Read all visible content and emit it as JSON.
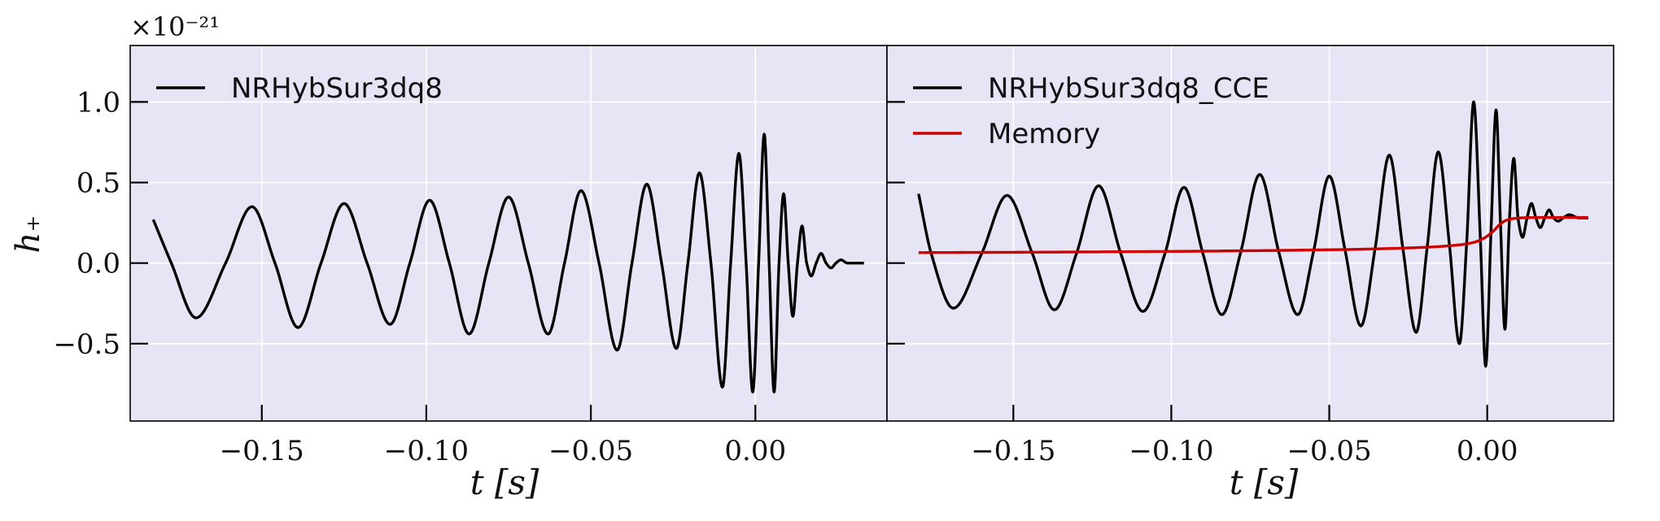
{
  "figure": {
    "offset_label": "×10⁻²¹",
    "ylabel": "h₊",
    "background": "#e5e5f6",
    "grid_color": "#ffffff"
  },
  "chart_data": [
    {
      "type": "line",
      "title": "",
      "xlabel": "t [s]",
      "ylabel": "h₊",
      "xlim": [
        -0.19,
        0.04
      ],
      "ylim": [
        -0.98,
        1.35
      ],
      "y_scale_multiplier": "1e-21",
      "grid": true,
      "legend_position": "top-left",
      "x_ticks": [
        -0.15,
        -0.1,
        -0.05,
        0.0
      ],
      "x_tick_labels": [
        "−0.15",
        "−0.10",
        "−0.05",
        "0.00"
      ],
      "y_ticks": [
        -0.5,
        0.0,
        0.5,
        1.0
      ],
      "y_tick_labels": [
        "−0.5",
        "0.0",
        "0.5",
        "1.0"
      ],
      "series": [
        {
          "name": "NRHybSur3dq8",
          "color": "#000000",
          "x": [
            -0.183,
            -0.1775,
            -0.17,
            -0.161,
            -0.153,
            -0.146,
            -0.139,
            -0.132,
            -0.125,
            -0.118,
            -0.111,
            -0.105,
            -0.099,
            -0.093,
            -0.087,
            -0.081,
            -0.075,
            -0.069,
            -0.063,
            -0.058,
            -0.053,
            -0.0475,
            -0.042,
            -0.0375,
            -0.033,
            -0.0285,
            -0.024,
            -0.0205,
            -0.017,
            -0.0135,
            -0.01,
            -0.0075,
            -0.005,
            -0.0028,
            -0.0008,
            0.001,
            0.0027,
            0.0042,
            0.0057,
            0.0072,
            0.0086,
            0.01,
            0.0114,
            0.0128,
            0.0142,
            0.0156,
            0.017,
            0.0185,
            0.02,
            0.0215,
            0.023,
            0.0245,
            0.026,
            0.028,
            0.03,
            0.033
          ],
          "y": [
            0.27,
            0.0,
            -0.34,
            0.0,
            0.35,
            0.0,
            -0.4,
            0.0,
            0.37,
            0.0,
            -0.38,
            0.0,
            0.39,
            0.0,
            -0.44,
            0.0,
            0.41,
            0.0,
            -0.44,
            0.0,
            0.45,
            0.0,
            -0.54,
            0.0,
            0.49,
            0.0,
            -0.53,
            0.0,
            0.56,
            0.0,
            -0.77,
            0.0,
            0.68,
            0.0,
            -0.8,
            0.0,
            0.8,
            0.0,
            -0.8,
            0.0,
            0.43,
            0.0,
            -0.33,
            0.0,
            0.23,
            0.0,
            -0.08,
            0.0,
            0.06,
            0.0,
            -0.03,
            0.0,
            0.02,
            0.0,
            0.0,
            0.0
          ]
        }
      ]
    },
    {
      "type": "line",
      "title": "",
      "xlabel": "t [s]",
      "ylabel": "",
      "xlim": [
        -0.19,
        0.04
      ],
      "ylim": [
        -0.98,
        1.35
      ],
      "y_scale_multiplier": "1e-21",
      "grid": true,
      "legend_position": "top-left",
      "x_ticks": [
        -0.15,
        -0.1,
        -0.05,
        0.0
      ],
      "x_tick_labels": [
        "−0.15",
        "−0.10",
        "−0.05",
        "0.00"
      ],
      "y_ticks": [
        -0.5,
        0.0,
        0.5,
        1.0
      ],
      "y_tick_labels": [],
      "series": [
        {
          "name": "NRHybSur3dq8_CCE",
          "color": "#000000",
          "x": [
            -0.18,
            -0.176,
            -0.169,
            -0.16,
            -0.152,
            -0.144,
            -0.137,
            -0.13,
            -0.123,
            -0.116,
            -0.109,
            -0.102,
            -0.096,
            -0.09,
            -0.084,
            -0.078,
            -0.072,
            -0.066,
            -0.06,
            -0.055,
            -0.05,
            -0.045,
            -0.04,
            -0.0355,
            -0.031,
            -0.0267,
            -0.0225,
            -0.019,
            -0.0155,
            -0.012,
            -0.0088,
            -0.0065,
            -0.0043,
            -0.0022,
            -0.0005,
            0.0012,
            0.0028,
            0.0042,
            0.0056,
            0.007,
            0.0084,
            0.0098,
            0.0112,
            0.0126,
            0.014,
            0.0154,
            0.0168,
            0.0182,
            0.0196,
            0.021,
            0.0225,
            0.024,
            0.026,
            0.029,
            0.032
          ],
          "y": [
            0.43,
            0.06,
            -0.28,
            0.06,
            0.42,
            0.06,
            -0.29,
            0.06,
            0.48,
            0.06,
            -0.3,
            0.06,
            0.47,
            0.06,
            -0.32,
            0.07,
            0.55,
            0.07,
            -0.32,
            0.07,
            0.54,
            0.08,
            -0.39,
            0.09,
            0.67,
            0.09,
            -0.43,
            0.1,
            0.69,
            0.12,
            -0.5,
            0.13,
            1.0,
            0.16,
            -0.64,
            0.2,
            0.95,
            0.24,
            -0.41,
            0.26,
            0.65,
            0.27,
            0.16,
            0.28,
            0.37,
            0.28,
            0.22,
            0.28,
            0.33,
            0.28,
            0.26,
            0.28,
            0.3,
            0.28,
            0.28
          ]
        },
        {
          "name": "Memory",
          "color": "#cc0000",
          "x": [
            -0.18,
            -0.15,
            -0.12,
            -0.09,
            -0.06,
            -0.04,
            -0.025,
            -0.015,
            -0.008,
            -0.004,
            -0.001,
            0.002,
            0.004,
            0.006,
            0.009,
            0.013,
            0.02,
            0.032
          ],
          "y": [
            0.065,
            0.067,
            0.07,
            0.074,
            0.08,
            0.086,
            0.094,
            0.103,
            0.115,
            0.13,
            0.155,
            0.2,
            0.24,
            0.265,
            0.278,
            0.282,
            0.283,
            0.283
          ]
        }
      ]
    }
  ]
}
